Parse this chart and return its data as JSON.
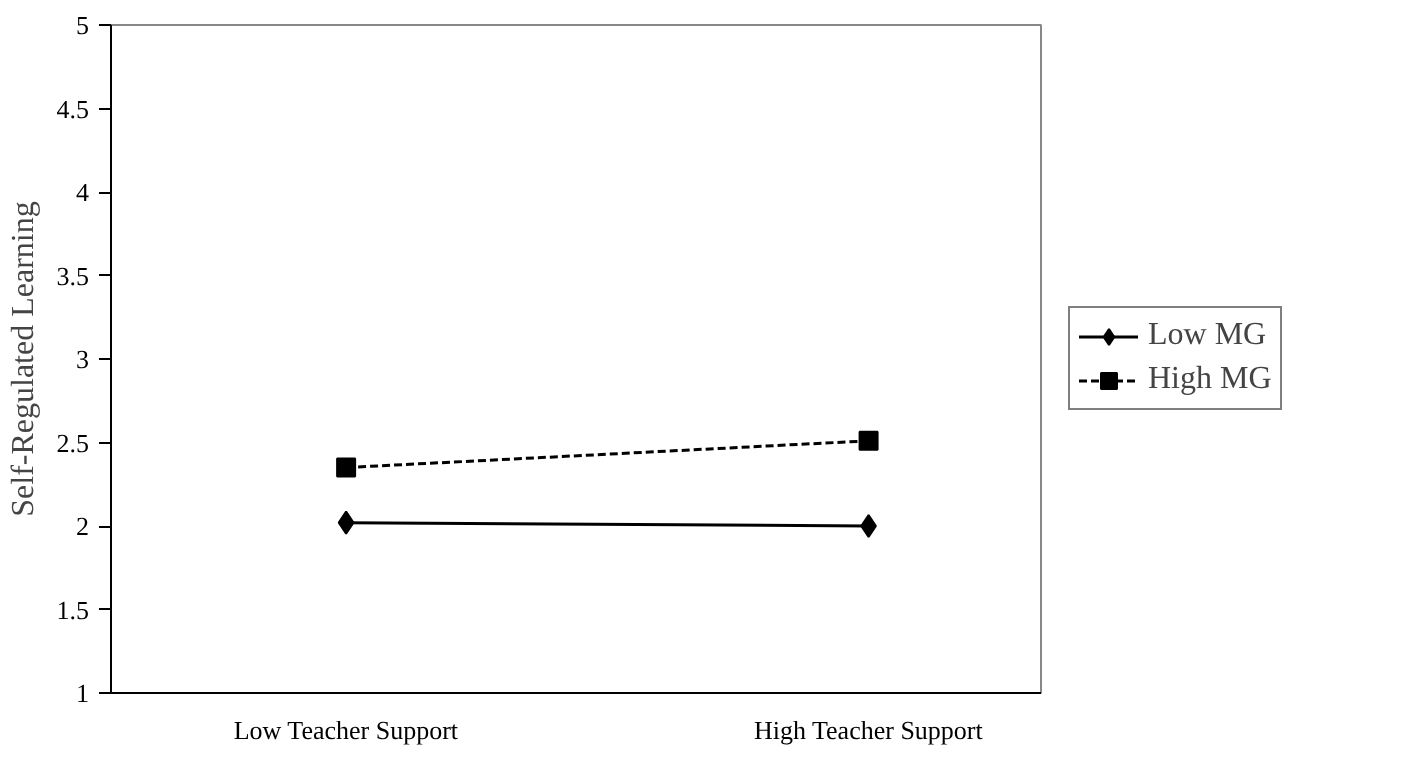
{
  "chart_data": {
    "type": "line",
    "ylabel": "Self-Regulated Learning",
    "categories": [
      "Low Teacher Support",
      "High Teacher Support"
    ],
    "series": [
      {
        "name": "Low MG",
        "color": "#000000",
        "values": [
          2.02,
          2.0
        ],
        "marker": "diamond",
        "line_style": "solid"
      },
      {
        "name": "High MG",
        "color": "#000000",
        "values": [
          2.35,
          2.51
        ],
        "marker": "square",
        "line_style": "dashed"
      }
    ],
    "ylim": [
      1,
      5
    ],
    "yticks": [
      1,
      1.5,
      2,
      2.5,
      3,
      3.5,
      4,
      4.5,
      5
    ],
    "grid": false,
    "legend": "right"
  }
}
